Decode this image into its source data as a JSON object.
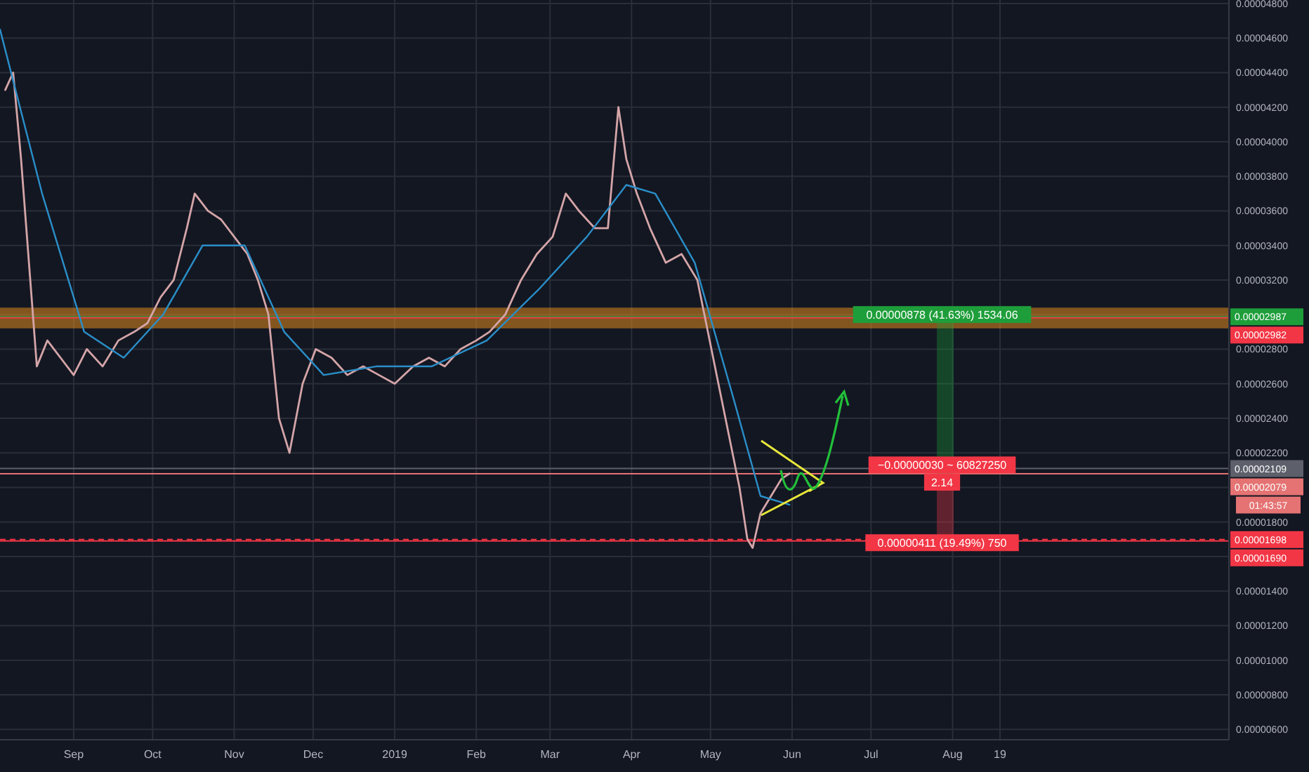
{
  "chart_data": {
    "type": "line",
    "x": [
      "2018-08-06",
      "2018-08-09",
      "2018-08-12",
      "2018-08-15",
      "2018-08-18",
      "2018-08-22",
      "2018-08-27",
      "2018-09-01",
      "2018-09-06",
      "2018-09-12",
      "2018-09-18",
      "2018-09-24",
      "2018-09-29",
      "2018-10-04",
      "2018-10-09",
      "2018-10-14",
      "2018-10-17",
      "2018-10-22",
      "2018-10-27",
      "2018-11-01",
      "2018-11-06",
      "2018-11-10",
      "2018-11-14",
      "2018-11-18",
      "2018-11-22",
      "2018-11-27",
      "2018-12-02",
      "2018-12-08",
      "2018-12-14",
      "2018-12-20",
      "2018-12-26",
      "2019-01-01",
      "2019-01-08",
      "2019-01-14",
      "2019-01-20",
      "2019-01-26",
      "2019-02-01",
      "2019-02-06",
      "2019-02-12",
      "2019-02-18",
      "2019-02-24",
      "2019-03-02",
      "2019-03-07",
      "2019-03-12",
      "2019-03-18",
      "2019-03-23",
      "2019-03-27",
      "2019-03-30",
      "2019-04-03",
      "2019-04-08",
      "2019-04-14",
      "2019-04-20",
      "2019-04-26",
      "2019-04-30",
      "2019-05-04",
      "2019-05-08",
      "2019-05-12",
      "2019-05-15",
      "2019-05-17",
      "2019-05-20",
      "2019-05-24",
      "2019-05-28",
      "2019-05-31"
    ],
    "series": [
      {
        "color": "#d4a5a8",
        "values": [
          4.3e-05,
          4.4e-05,
          3.9e-05,
          3.3e-05,
          2.7e-05,
          2.85e-05,
          2.75e-05,
          2.65e-05,
          2.8e-05,
          2.7e-05,
          2.85e-05,
          2.9e-05,
          2.95e-05,
          3.1e-05,
          3.2e-05,
          3.5e-05,
          3.7e-05,
          3.6e-05,
          3.55e-05,
          3.45e-05,
          3.35e-05,
          3.2e-05,
          3e-05,
          2.4e-05,
          2.2e-05,
          2.6e-05,
          2.8e-05,
          2.75e-05,
          2.65e-05,
          2.7e-05,
          2.65e-05,
          2.6e-05,
          2.7e-05,
          2.75e-05,
          2.7e-05,
          2.8e-05,
          2.85e-05,
          2.9e-05,
          3e-05,
          3.2e-05,
          3.35e-05,
          3.45e-05,
          3.7e-05,
          3.6e-05,
          3.5e-05,
          3.5e-05,
          4.2e-05,
          3.9e-05,
          3.7e-05,
          3.5e-05,
          3.3e-05,
          3.35e-05,
          3.2e-05,
          2.9e-05,
          2.6e-05,
          2.3e-05,
          2e-05,
          1.7e-05,
          1.65e-05,
          1.85e-05,
          1.95e-05,
          2.05e-05,
          2.08e-05
        ]
      },
      {
        "color": "#2a8fc9",
        "x": [
          "2018-08-04",
          "2018-08-20",
          "2018-09-05",
          "2018-09-20",
          "2018-10-05",
          "2018-10-20",
          "2018-11-05",
          "2018-11-20",
          "2018-12-05",
          "2018-12-25",
          "2019-01-15",
          "2019-02-05",
          "2019-02-25",
          "2019-03-15",
          "2019-03-30",
          "2019-04-10",
          "2019-04-25",
          "2019-05-10",
          "2019-05-20",
          "2019-05-31"
        ],
        "values": [
          4.65e-05,
          3.7e-05,
          2.9e-05,
          2.75e-05,
          3e-05,
          3.4e-05,
          3.4e-05,
          2.9e-05,
          2.65e-05,
          2.7e-05,
          2.7e-05,
          2.85e-05,
          3.15e-05,
          3.45e-05,
          3.75e-05,
          3.7e-05,
          3.3e-05,
          2.5e-05,
          1.95e-05,
          1.9e-05
        ]
      }
    ],
    "xlim": [
      "2018-08-04",
      "2019-11-14"
    ],
    "xticks": [
      {
        "value": "2018-09-01",
        "label": "Sep"
      },
      {
        "value": "2018-10-01",
        "label": "Oct"
      },
      {
        "value": "2018-11-01",
        "label": "Nov"
      },
      {
        "value": "2018-12-01",
        "label": "Dec"
      },
      {
        "value": "2019-01-01",
        "label": "2019"
      },
      {
        "value": "2019-02-01",
        "label": "Feb"
      },
      {
        "value": "2019-03-01",
        "label": "Mar"
      },
      {
        "value": "2019-04-01",
        "label": "Apr"
      },
      {
        "value": "2019-05-01",
        "label": "May"
      },
      {
        "value": "2019-06-01",
        "label": "Jun"
      },
      {
        "value": "2019-07-01",
        "label": "Jul"
      },
      {
        "value": "2019-08-01",
        "label": "Aug"
      },
      {
        "value": "2019-08-19",
        "label": "19"
      }
    ],
    "ylim": [
      5.4e-06,
      4.82e-05
    ],
    "yticks": [
      {
        "value": 6e-06,
        "label": "0.00000600"
      },
      {
        "value": 8e-06,
        "label": "0.00000800"
      },
      {
        "value": 1e-05,
        "label": "0.00001000"
      },
      {
        "value": 1.2e-05,
        "label": "0.00001200"
      },
      {
        "value": 1.4e-05,
        "label": "0.00001400"
      },
      {
        "value": 1.6e-05,
        "label": null
      },
      {
        "value": 1.8e-05,
        "label": "0.00001800"
      },
      {
        "value": 2e-05,
        "label": null
      },
      {
        "value": 2.2e-05,
        "label": "0.00002200"
      },
      {
        "value": 2.4e-05,
        "label": "0.00002400"
      },
      {
        "value": 2.6e-05,
        "label": "0.00002600"
      },
      {
        "value": 2.8e-05,
        "label": "0.00002800"
      },
      {
        "value": 3e-05,
        "label": null
      },
      {
        "value": 3.2e-05,
        "label": "0.00003200"
      },
      {
        "value": 3.4e-05,
        "label": "0.00003400"
      },
      {
        "value": 3.6e-05,
        "label": "0.00003600"
      },
      {
        "value": 3.8e-05,
        "label": "0.00003800"
      },
      {
        "value": 4e-05,
        "label": "0.00004000"
      },
      {
        "value": 4.2e-05,
        "label": "0.00004200"
      },
      {
        "value": 4.4e-05,
        "label": "0.00004400"
      },
      {
        "value": 4.6e-05,
        "label": "0.00004600"
      },
      {
        "value": 4.8e-05,
        "label": "0.00004800"
      }
    ],
    "grid": true,
    "ref_lines": [
      {
        "axis": "y",
        "value": 2.987e-05,
        "label": "0.00002987",
        "color": "#1e9e3a"
      },
      {
        "axis": "y",
        "value": 2.982e-05,
        "label": "0.00002982",
        "color": "#f23645"
      },
      {
        "axis": "y",
        "value": 2.109e-05,
        "label": "0.00002109",
        "color": "#5d606b"
      },
      {
        "axis": "y",
        "value": 2.079e-05,
        "label": "0.00002079",
        "color": "#e57373"
      },
      {
        "axis": "y",
        "value": 1.698e-05,
        "label": "0.00001698",
        "color": "#f23645",
        "line_style": "dashed"
      },
      {
        "axis": "y",
        "value": 1.69e-05,
        "label": "0.00001690",
        "color": "#f23645"
      }
    ],
    "bands": [
      {
        "axis": "y",
        "from": 2.92e-05,
        "to": 3.04e-05,
        "color": "#e08a1e"
      }
    ],
    "annotations": [
      {
        "text": "0.00000878 (41.63%) 1534.06",
        "x": "2019-07-28",
        "y": 3e-05
      },
      {
        "text": "−0.00000030 ~ 60827250",
        "x": "2019-07-28",
        "y": 2.13e-05
      },
      {
        "text": "2.14",
        "x": "2019-07-28",
        "y": 2.03e-05
      },
      {
        "text": "0.00000411 (19.49%) 750",
        "x": "2019-07-28",
        "y": 1.68e-05
      },
      "01:43:57"
    ]
  }
}
